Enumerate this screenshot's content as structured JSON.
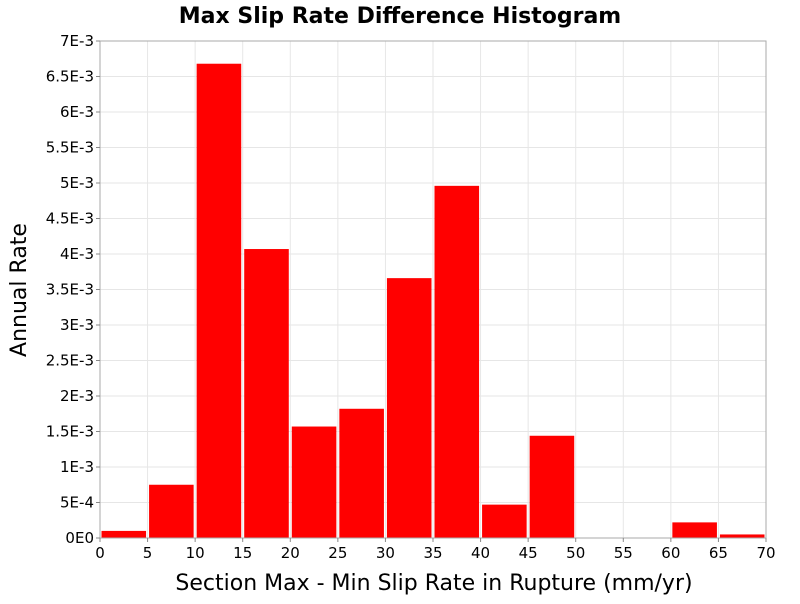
{
  "chart_data": {
    "type": "bar",
    "title": "Max Slip Rate Difference Histogram",
    "xlabel": "Section Max - Min Slip Rate in Rupture (mm/yr)",
    "ylabel": "Annual Rate",
    "xlim": [
      0,
      70
    ],
    "ylim": [
      0,
      0.007
    ],
    "bin_width": 5,
    "grid": true,
    "legend": "none",
    "bar_color": "#ff0000",
    "x_ticks": [
      {
        "value": 0,
        "label": "0"
      },
      {
        "value": 5,
        "label": "5"
      },
      {
        "value": 10,
        "label": "10"
      },
      {
        "value": 15,
        "label": "15"
      },
      {
        "value": 20,
        "label": "20"
      },
      {
        "value": 25,
        "label": "25"
      },
      {
        "value": 30,
        "label": "30"
      },
      {
        "value": 35,
        "label": "35"
      },
      {
        "value": 40,
        "label": "40"
      },
      {
        "value": 45,
        "label": "45"
      },
      {
        "value": 50,
        "label": "50"
      },
      {
        "value": 55,
        "label": "55"
      },
      {
        "value": 60,
        "label": "60"
      },
      {
        "value": 65,
        "label": "65"
      },
      {
        "value": 70,
        "label": "70"
      }
    ],
    "y_ticks": [
      {
        "value": 0,
        "label": "0E0"
      },
      {
        "value": 0.0005,
        "label": "5E-4"
      },
      {
        "value": 0.001,
        "label": "1E-3"
      },
      {
        "value": 0.0015,
        "label": "1.5E-3"
      },
      {
        "value": 0.002,
        "label": "2E-3"
      },
      {
        "value": 0.0025,
        "label": "2.5E-3"
      },
      {
        "value": 0.003,
        "label": "3E-3"
      },
      {
        "value": 0.0035,
        "label": "3.5E-3"
      },
      {
        "value": 0.004,
        "label": "4E-3"
      },
      {
        "value": 0.0045,
        "label": "4.5E-3"
      },
      {
        "value": 0.005,
        "label": "5E-3"
      },
      {
        "value": 0.0055,
        "label": "5.5E-3"
      },
      {
        "value": 0.006,
        "label": "6E-3"
      },
      {
        "value": 0.0065,
        "label": "6.5E-3"
      },
      {
        "value": 0.007,
        "label": "7E-3"
      }
    ],
    "bins": [
      {
        "start": 0,
        "end": 5,
        "value": 0.0001
      },
      {
        "start": 5,
        "end": 10,
        "value": 0.00075
      },
      {
        "start": 10,
        "end": 15,
        "value": 0.00668
      },
      {
        "start": 15,
        "end": 20,
        "value": 0.00407
      },
      {
        "start": 20,
        "end": 25,
        "value": 0.00157
      },
      {
        "start": 25,
        "end": 30,
        "value": 0.00182
      },
      {
        "start": 30,
        "end": 35,
        "value": 0.00366
      },
      {
        "start": 35,
        "end": 40,
        "value": 0.00496
      },
      {
        "start": 40,
        "end": 45,
        "value": 0.00047
      },
      {
        "start": 45,
        "end": 50,
        "value": 0.00144
      },
      {
        "start": 50,
        "end": 55,
        "value": 0
      },
      {
        "start": 55,
        "end": 60,
        "value": 0
      },
      {
        "start": 60,
        "end": 65,
        "value": 0.00022
      },
      {
        "start": 65,
        "end": 70,
        "value": 5e-05
      }
    ]
  }
}
